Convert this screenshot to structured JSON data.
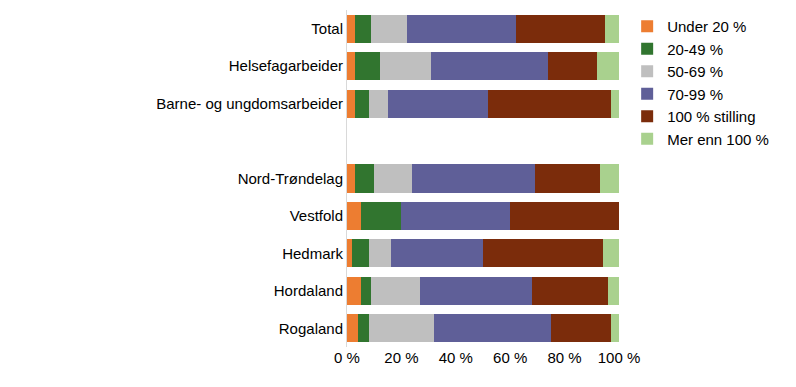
{
  "chart_data": {
    "type": "bar",
    "orientation": "horizontal",
    "stacked": true,
    "grid": false,
    "legend": "right",
    "categories": [
      "Total",
      "Helsefagarbeider",
      "Barne- og ungdomsarbeider",
      null,
      "Nord-Trøndelag",
      "Vestfold",
      "Hedmark",
      "Hordaland",
      "Rogaland"
    ],
    "series": [
      {
        "name": "Under 20 %",
        "color": "#ED7D31",
        "values": [
          3,
          3,
          3,
          null,
          3,
          5,
          2,
          5,
          4
        ]
      },
      {
        "name": "20-49 %",
        "color": "#31752F",
        "values": [
          6,
          9,
          5,
          null,
          7,
          15,
          6,
          4,
          4
        ]
      },
      {
        "name": "50-69 %",
        "color": "#BFBFBF",
        "values": [
          13,
          19,
          7,
          null,
          14,
          0,
          8,
          18,
          24
        ]
      },
      {
        "name": "70-99 %",
        "color": "#5F5F98",
        "values": [
          40,
          43,
          37,
          null,
          45,
          40,
          34,
          41,
          43
        ]
      },
      {
        "name": "100 % stilling",
        "color": "#7B2C0B",
        "values": [
          33,
          18,
          45,
          null,
          24,
          40,
          44,
          28,
          22
        ]
      },
      {
        "name": "Mer enn 100 %",
        "color": "#A9D18E",
        "values": [
          5,
          8,
          3,
          null,
          7,
          0,
          6,
          4,
          3
        ]
      }
    ],
    "xlim": [
      0,
      100
    ],
    "xticks": [
      {
        "value": 0,
        "label": "0 %"
      },
      {
        "value": 20,
        "label": "20 %"
      },
      {
        "value": 40,
        "label": "40 %"
      },
      {
        "value": 60,
        "label": "60 %"
      },
      {
        "value": 80,
        "label": "80 %"
      },
      {
        "value": 100,
        "label": "100 %"
      }
    ]
  }
}
